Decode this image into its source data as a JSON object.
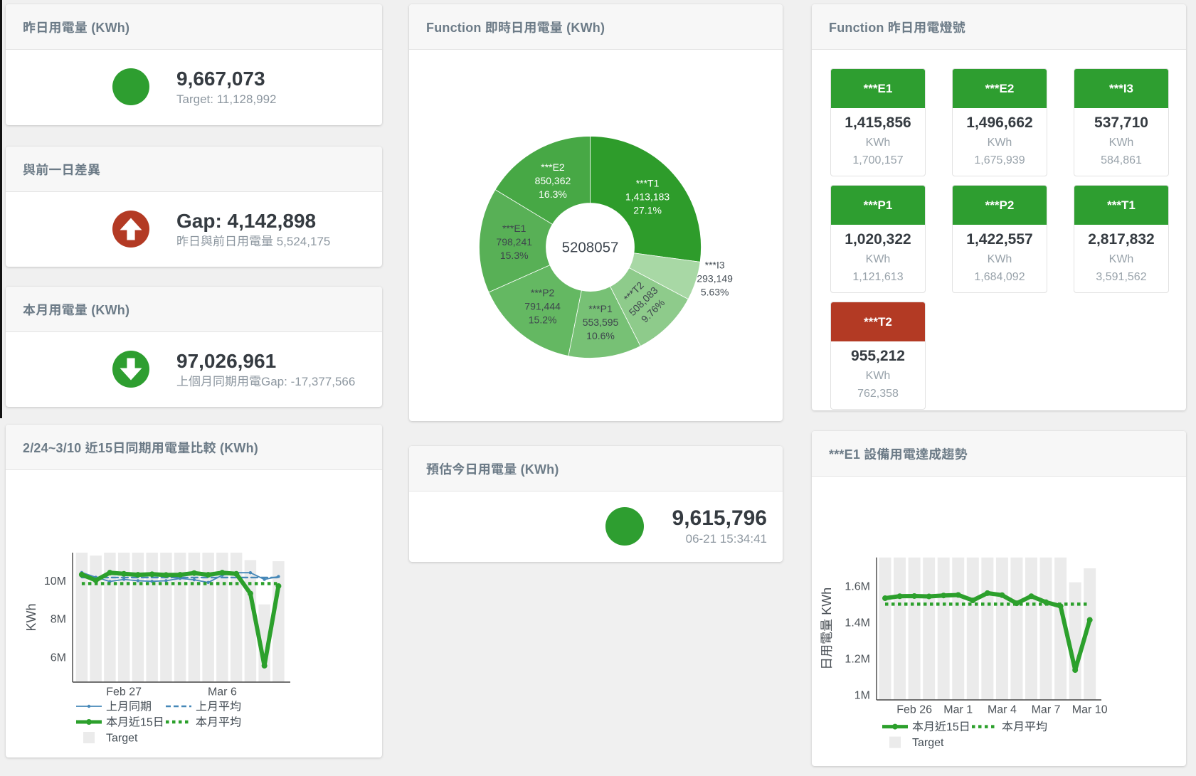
{
  "colors": {
    "green": "#2e9e30",
    "red": "#b33a24",
    "chart_green": "#2ca02c",
    "chart_blue": "#4688b8",
    "target_bar_gray": "#ebebeb"
  },
  "cards": {
    "yesterday": {
      "title": "昨日用電量 (KWh)",
      "value": "9,667,073",
      "subtitle": "Target: 11,128,992",
      "status": "green",
      "icon": "circle"
    },
    "day_gap": {
      "title": "與前一日差異",
      "value": "Gap: 4,142,898",
      "subtitle": "昨日與前日用電量 5,524,175",
      "status": "red",
      "icon": "arrow-up"
    },
    "month": {
      "title": "本月用電量 (KWh)",
      "value": "97,026,961",
      "subtitle": "上個月同期用電Gap: -17,377,566",
      "status": "green",
      "icon": "arrow-down"
    },
    "realtime": {
      "title": "Function 即時日用電量 (KWh)"
    },
    "forecast": {
      "title": "預估今日用電量 (KWh)",
      "value": "9,615,796",
      "timestamp": "06-21 15:34:41",
      "status": "green",
      "icon": "circle"
    },
    "lights": {
      "title": "Function 昨日用電燈號",
      "unit": "KWh",
      "tiles": [
        {
          "label": "***E1",
          "value": "1,415,856",
          "unit": "KWh",
          "target": "1,700,157",
          "status": "green"
        },
        {
          "label": "***E2",
          "value": "1,496,662",
          "unit": "KWh",
          "target": "1,675,939",
          "status": "green"
        },
        {
          "label": "***I3",
          "value": "537,710",
          "unit": "KWh",
          "target": "584,861",
          "status": "green"
        },
        {
          "label": "***P1",
          "value": "1,020,322",
          "unit": "KWh",
          "target": "1,121,613",
          "status": "green"
        },
        {
          "label": "***P2",
          "value": "1,422,557",
          "unit": "KWh",
          "target": "1,684,092",
          "status": "green"
        },
        {
          "label": "***T1",
          "value": "2,817,832",
          "unit": "KWh",
          "target": "3,591,562",
          "status": "green"
        },
        {
          "label": "***T2",
          "value": "955,212",
          "unit": "KWh",
          "target": "762,358",
          "status": "red"
        }
      ]
    },
    "compare": {
      "title": "2/24~3/10 近15日同期用電量比較 (KWh)"
    },
    "trend": {
      "title": "***E1 設備用電達成趨勢"
    }
  },
  "chart_data": [
    {
      "type": "pie",
      "title": "Function 即時日用電量 (KWh)",
      "hole": 0.4,
      "center_total": "5208057",
      "slices": [
        {
          "label": "***T1",
          "value": 1413183,
          "value_text": "1,413,183",
          "pct_text": "27.1%",
          "color": "#2e9c2b",
          "text_color": "#ffffff",
          "text_pos": "inside",
          "rotate": 0
        },
        {
          "label": "***I3",
          "value": 293149,
          "value_text": "293,149",
          "pct_text": "5.63%",
          "color": "#a8d8a5",
          "text_color": "#454e56",
          "text_pos": "outside",
          "rotate": 0
        },
        {
          "label": "***T2",
          "value": 508083,
          "value_text": "508,083",
          "pct_text": "9.76%",
          "color": "#8ecb8b",
          "text_color": "#3e464d",
          "text_pos": "inside",
          "rotate": -45
        },
        {
          "label": "***P1",
          "value": 553595,
          "value_text": "553,595",
          "pct_text": "10.6%",
          "color": "#77c175",
          "text_color": "#3e464d",
          "text_pos": "inside",
          "rotate": 0
        },
        {
          "label": "***P2",
          "value": 791444,
          "value_text": "791,444",
          "pct_text": "15.2%",
          "color": "#64b862",
          "text_color": "#3e464d",
          "text_pos": "inside",
          "rotate": 0
        },
        {
          "label": "***E1",
          "value": 798241,
          "value_text": "798,241",
          "pct_text": "15.3%",
          "color": "#58b056",
          "text_color": "#3e464d",
          "text_pos": "inside",
          "rotate": 0
        },
        {
          "label": "***E2",
          "value": 850362,
          "value_text": "850,362",
          "pct_text": "16.3%",
          "color": "#47a845",
          "text_color": "#ffffff",
          "text_pos": "inside",
          "rotate": 0
        }
      ]
    },
    {
      "type": "line",
      "title": "2/24~3/10 近15日同期用電量比較 (KWh)",
      "ylabel": "KWh",
      "x": [
        "Feb 24",
        "Feb 25",
        "Feb 26",
        "Feb 27",
        "Feb 28",
        "Mar 1",
        "Mar 2",
        "Mar 3",
        "Mar 4",
        "Mar 5",
        "Mar 6",
        "Mar 7",
        "Mar 8",
        "Mar 9",
        "Mar 10"
      ],
      "xticks": [
        {
          "index": 3,
          "label": "Feb 27"
        },
        {
          "index": 10,
          "label": "Mar 6"
        }
      ],
      "yticks": [
        {
          "value": 6000000,
          "label": "6M"
        },
        {
          "value": 8000000,
          "label": "8M"
        },
        {
          "value": 10000000,
          "label": "10M"
        }
      ],
      "ylim": [
        4690000,
        11470000
      ],
      "grid": false,
      "legend_position": "bottom",
      "series": [
        {
          "name": "Target",
          "type": "bar",
          "color": "#ebebeb",
          "values": [
            11600000,
            11320000,
            11600000,
            11600000,
            11600000,
            11600000,
            11600000,
            11600000,
            11600000,
            11600000,
            11600000,
            11600000,
            11080000,
            8760000,
            11020000
          ]
        },
        {
          "name": "上月同期",
          "type": "line",
          "style": "solid",
          "width": 1.8,
          "marker": 2.2,
          "color": "#4688b8",
          "values": [
            10430000,
            10180000,
            9960000,
            10070000,
            10000000,
            9970000,
            10000000,
            10120000,
            10050000,
            9910000,
            10290000,
            10420000,
            10420000,
            10070000,
            10220000
          ]
        },
        {
          "name": "上月平均",
          "type": "line",
          "style": "dash",
          "width": 2.4,
          "marker": 0,
          "color": "#4688b8",
          "values": [
            10170000,
            10170000,
            10170000,
            10170000,
            10170000,
            10170000,
            10170000,
            10170000,
            10170000,
            10170000,
            10170000,
            10170000,
            10170000,
            10170000,
            10170000
          ]
        },
        {
          "name": "本月近15日",
          "type": "line",
          "style": "solid",
          "width": 6,
          "marker": 4,
          "color": "#2ca02c",
          "values": [
            10320000,
            10020000,
            10420000,
            10360000,
            10310000,
            10340000,
            10300000,
            10310000,
            10400000,
            10310000,
            10420000,
            10360000,
            9330000,
            5550000,
            9720000
          ]
        },
        {
          "name": "本月平均",
          "type": "line",
          "style": "dot",
          "width": 4.5,
          "marker": 0,
          "color": "#2ca02c",
          "values": [
            9850000,
            9850000,
            9850000,
            9850000,
            9850000,
            9850000,
            9850000,
            9850000,
            9850000,
            9850000,
            9850000,
            9850000,
            9850000,
            9850000,
            9850000
          ]
        }
      ],
      "legend": [
        {
          "series": 1,
          "row": 0,
          "col": 0
        },
        {
          "series": 2,
          "row": 0,
          "col": 1
        },
        {
          "series": 3,
          "row": 1,
          "col": 0
        },
        {
          "series": 4,
          "row": 1,
          "col": 1
        },
        {
          "series": 0,
          "row": 2,
          "col": 0
        }
      ]
    },
    {
      "type": "line",
      "title": "***E1 設備用電達成趨勢",
      "ylabel": "日用電量 KWh",
      "x": [
        "Feb 24",
        "Feb 25",
        "Feb 26",
        "Feb 27",
        "Feb 28",
        "Mar 1",
        "Mar 2",
        "Mar 3",
        "Mar 4",
        "Mar 5",
        "Mar 6",
        "Mar 7",
        "Mar 8",
        "Mar 9",
        "Mar 10"
      ],
      "xticks": [
        {
          "index": 2,
          "label": "Feb 26"
        },
        {
          "index": 5,
          "label": "Mar 1"
        },
        {
          "index": 8,
          "label": "Mar 4"
        },
        {
          "index": 11,
          "label": "Mar 7"
        },
        {
          "index": 14,
          "label": "Mar 10"
        }
      ],
      "yticks": [
        {
          "value": 1000000,
          "label": "1M"
        },
        {
          "value": 1200000,
          "label": "1.2M"
        },
        {
          "value": 1400000,
          "label": "1.4M"
        },
        {
          "value": 1600000,
          "label": "1.6M"
        }
      ],
      "ylim": [
        972000,
        1759000
      ],
      "grid": false,
      "legend_position": "bottom",
      "series": [
        {
          "name": "Target",
          "type": "bar",
          "color": "#ebebeb",
          "values": [
            1800000,
            1800000,
            1800000,
            1800000,
            1800000,
            1800000,
            1800000,
            1800000,
            1800000,
            1800000,
            1800000,
            1800000,
            1800000,
            1622000,
            1699000
          ]
        },
        {
          "name": "本月近15日",
          "type": "line",
          "style": "solid",
          "width": 6,
          "marker": 4,
          "color": "#2ca02c",
          "values": [
            1534000,
            1545000,
            1546000,
            1544000,
            1549000,
            1552000,
            1522000,
            1562000,
            1551000,
            1506000,
            1545000,
            1512000,
            1490000,
            1137000,
            1414000
          ]
        },
        {
          "name": "本月平均",
          "type": "line",
          "style": "dot",
          "width": 4.5,
          "marker": 0,
          "color": "#2ca02c",
          "values": [
            1501000,
            1501000,
            1501000,
            1501000,
            1501000,
            1501000,
            1501000,
            1501000,
            1501000,
            1501000,
            1501000,
            1501000,
            1501000,
            1501000,
            1501000
          ]
        }
      ],
      "legend": [
        {
          "series": 1,
          "row": 0,
          "col": 0
        },
        {
          "series": 2,
          "row": 0,
          "col": 1
        },
        {
          "series": 0,
          "row": 1,
          "col": 0
        }
      ]
    }
  ]
}
